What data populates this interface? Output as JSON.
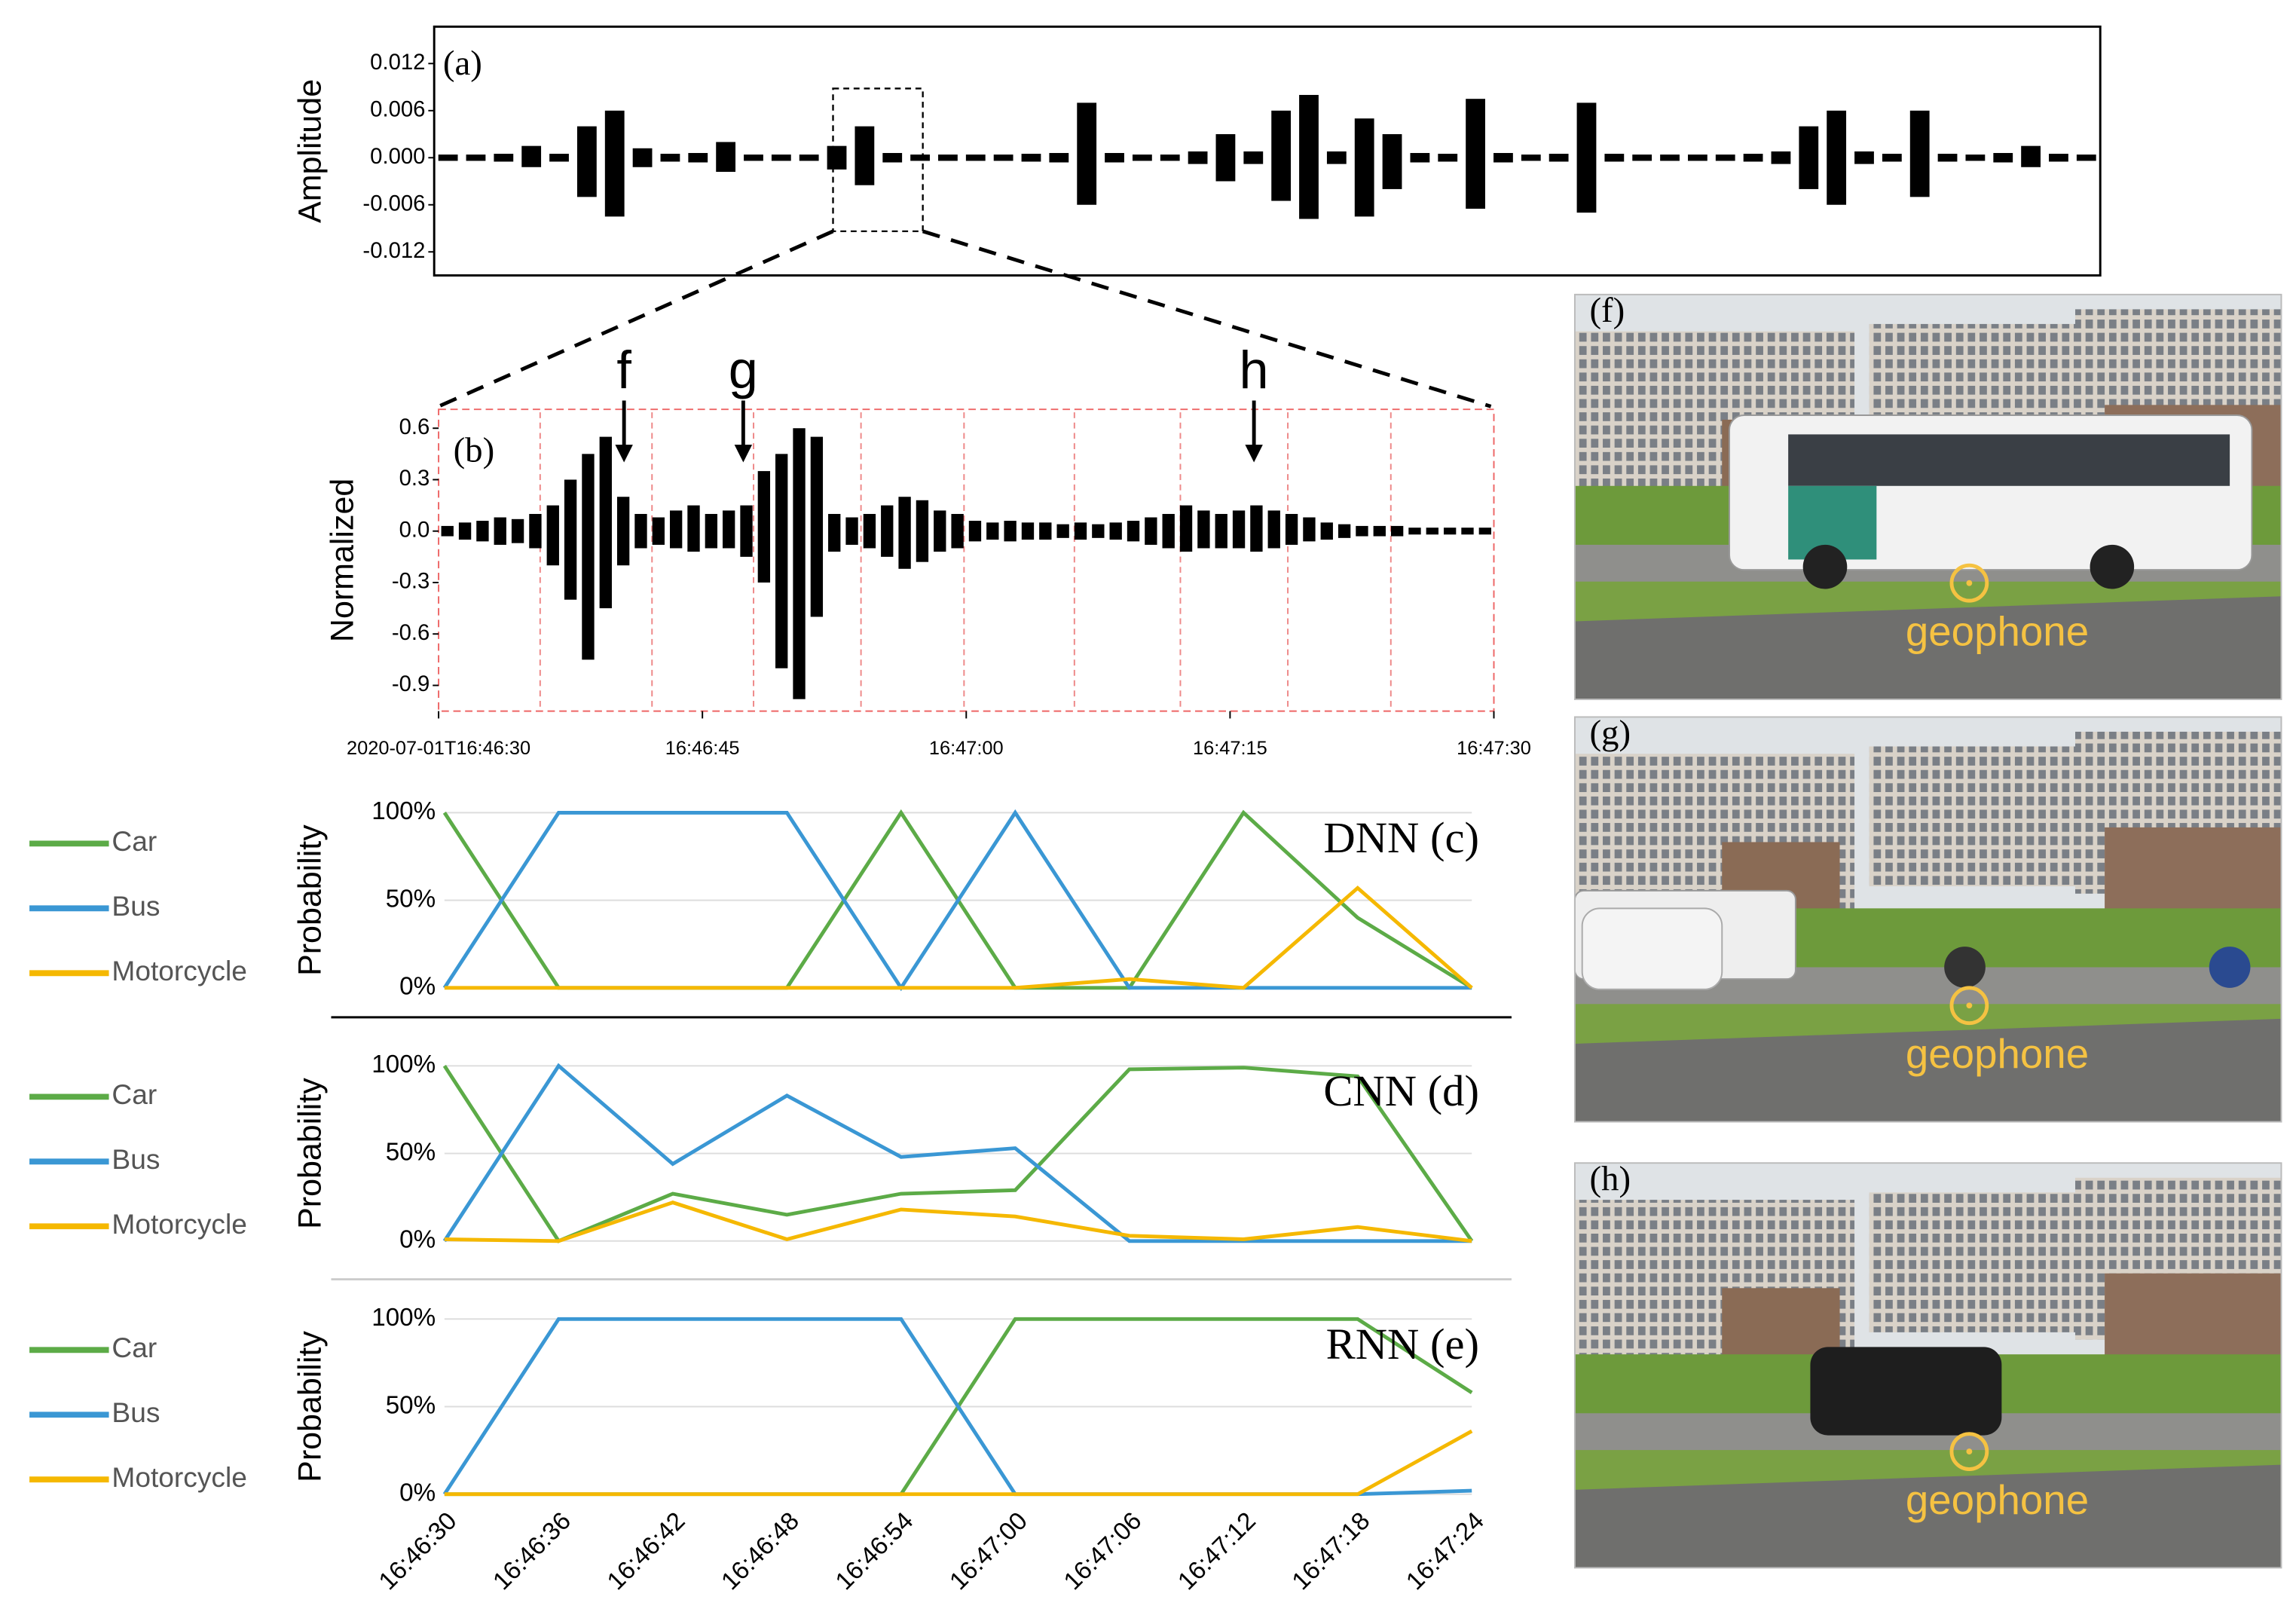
{
  "chart_data": [
    {
      "type": "waveform",
      "label": "(a)",
      "ylabel": "Amplitude",
      "ylim": [
        -0.015,
        0.0167
      ],
      "yticks": [
        0.012,
        0.006,
        {
          "value": 0,
          "label": "0.000"
        },
        -0.006,
        -0.012
      ],
      "series": [
        {
          "color": "#000000",
          "values": [
            0.0004,
            0.0004,
            0.0005,
            0.0015,
            0.0005,
            0.004,
            0.006,
            0.0012,
            0.0005,
            0.0006,
            0.002,
            0.0004,
            0.0004,
            0.0004,
            0.0015,
            0.004,
            0.0006,
            0.0004,
            0.0004,
            0.0004,
            0.0004,
            0.0005,
            0.0006,
            0.007,
            0.0006,
            0.0004,
            0.0004,
            0.0008,
            0.003,
            0.0008,
            0.006,
            0.008,
            0.0008,
            0.005,
            0.003,
            0.0006,
            0.0005,
            0.0075,
            0.0006,
            0.0004,
            0.0005,
            0.007,
            0.0005,
            0.0004,
            0.0004,
            0.0004,
            0.0004,
            0.0005,
            0.0008,
            0.004,
            0.006,
            0.0008,
            0.0005,
            0.006,
            0.0005,
            0.0004,
            0.0006,
            0.0015,
            0.0005,
            0.0004
          ]
        },
        {
          "color": "#000000",
          "values": [
            -0.0004,
            -0.0004,
            -0.0005,
            -0.0012,
            -0.0005,
            -0.005,
            -0.0075,
            -0.0012,
            -0.0005,
            -0.0006,
            -0.0018,
            -0.0004,
            -0.0004,
            -0.0004,
            -0.0015,
            -0.0035,
            -0.0006,
            -0.0004,
            -0.0004,
            -0.0004,
            -0.0004,
            -0.0005,
            -0.0006,
            -0.006,
            -0.0006,
            -0.0004,
            -0.0004,
            -0.0008,
            -0.003,
            -0.0008,
            -0.0055,
            -0.0078,
            -0.0008,
            -0.0075,
            -0.004,
            -0.0006,
            -0.0005,
            -0.0065,
            -0.0006,
            -0.0004,
            -0.0005,
            -0.007,
            -0.0005,
            -0.0004,
            -0.0004,
            -0.0004,
            -0.0004,
            -0.0005,
            -0.0008,
            -0.004,
            -0.006,
            -0.0008,
            -0.0005,
            -0.005,
            -0.0005,
            -0.0004,
            -0.0006,
            -0.0012,
            -0.0005,
            -0.0004
          ]
        }
      ]
    },
    {
      "type": "waveform",
      "label": "(b)",
      "ylabel": "Normalized",
      "xlim": [
        "2020-07-01T16:46:30",
        "16:47:30"
      ],
      "xticks": [
        "2020-07-01T16:46:30",
        "16:46:45",
        "16:47:00",
        "16:47:15",
        "16:47:30"
      ],
      "ylim": [
        -1.05,
        0.71
      ],
      "yticks": [
        0.6,
        0.3,
        {
          "value": 0,
          "label": "0.0"
        },
        -0.3,
        -0.6,
        -0.9
      ],
      "annotations": [
        "f",
        "g",
        "h"
      ],
      "series": [
        {
          "color": "#000000",
          "values": [
            0.03,
            0.05,
            0.06,
            0.08,
            0.07,
            0.1,
            0.15,
            0.3,
            0.45,
            0.55,
            0.2,
            0.1,
            0.08,
            0.12,
            0.15,
            0.1,
            0.12,
            0.15,
            0.35,
            0.45,
            0.6,
            0.55,
            0.1,
            0.08,
            0.1,
            0.15,
            0.2,
            0.18,
            0.12,
            0.1,
            0.06,
            0.05,
            0.06,
            0.05,
            0.05,
            0.04,
            0.05,
            0.04,
            0.05,
            0.06,
            0.08,
            0.1,
            0.15,
            0.12,
            0.1,
            0.12,
            0.15,
            0.12,
            0.1,
            0.08,
            0.05,
            0.04,
            0.03,
            0.03,
            0.03,
            0.02,
            0.02,
            0.02,
            0.02,
            0.02
          ]
        },
        {
          "color": "#000000",
          "values": [
            -0.03,
            -0.05,
            -0.06,
            -0.08,
            -0.07,
            -0.1,
            -0.2,
            -0.4,
            -0.75,
            -0.45,
            -0.2,
            -0.1,
            -0.08,
            -0.1,
            -0.12,
            -0.1,
            -0.1,
            -0.15,
            -0.3,
            -0.8,
            -0.98,
            -0.5,
            -0.12,
            -0.08,
            -0.1,
            -0.15,
            -0.22,
            -0.18,
            -0.12,
            -0.1,
            -0.06,
            -0.05,
            -0.06,
            -0.05,
            -0.05,
            -0.04,
            -0.05,
            -0.04,
            -0.05,
            -0.06,
            -0.08,
            -0.1,
            -0.12,
            -0.1,
            -0.1,
            -0.1,
            -0.12,
            -0.1,
            -0.08,
            -0.06,
            -0.05,
            -0.04,
            -0.03,
            -0.03,
            -0.03,
            -0.02,
            -0.02,
            -0.02,
            -0.02,
            -0.02
          ]
        }
      ]
    },
    {
      "type": "line",
      "label": "DNN (c)",
      "ylabel": "Probability",
      "legend": "left",
      "grid": true,
      "categories": [
        null,
        null,
        null,
        null,
        null,
        null,
        null,
        null,
        null,
        null
      ],
      "ylim": [
        0,
        100
      ],
      "yticks": [
        {
          "value": 0,
          "label": "0%"
        },
        {
          "value": 50,
          "label": "50%"
        },
        {
          "value": 100,
          "label": "100%"
        }
      ],
      "series": [
        {
          "name": "Car",
          "color": "#5cab47",
          "values": [
            100,
            0,
            0,
            0,
            100,
            0,
            0,
            100,
            40,
            0
          ]
        },
        {
          "name": "Bus",
          "color": "#3a97d4",
          "values": [
            0,
            100,
            100,
            100,
            0,
            100,
            0,
            0,
            0,
            0
          ]
        },
        {
          "name": "Motorcycle",
          "color": "#f5b800",
          "values": [
            0,
            0,
            0,
            0,
            0,
            0,
            5,
            0,
            57,
            0
          ]
        }
      ]
    },
    {
      "type": "line",
      "label": "CNN (d)",
      "ylabel": "Probability",
      "legend": "left",
      "grid": true,
      "categories": [
        null,
        null,
        null,
        null,
        null,
        null,
        null,
        null,
        null,
        null
      ],
      "ylim": [
        0,
        100
      ],
      "yticks": [
        {
          "value": 0,
          "label": "0%"
        },
        {
          "value": 50,
          "label": "50%"
        },
        {
          "value": 100,
          "label": "100%"
        }
      ],
      "series": [
        {
          "name": "Car",
          "color": "#5cab47",
          "values": [
            100,
            0,
            27,
            15,
            27,
            29,
            98,
            99,
            94,
            0
          ]
        },
        {
          "name": "Bus",
          "color": "#3a97d4",
          "values": [
            0,
            100,
            44,
            83,
            48,
            53,
            0,
            0,
            0,
            0
          ]
        },
        {
          "name": "Motorcycle",
          "color": "#f5b800",
          "values": [
            1,
            0,
            22,
            1,
            18,
            14,
            3,
            1,
            8,
            0
          ]
        }
      ]
    },
    {
      "type": "line",
      "label": "RNN (e)",
      "ylabel": "Probability",
      "legend": "left",
      "grid": true,
      "categories": [
        "16:46:30",
        "16:46:36",
        "16:46:42",
        "16:46:48",
        "16:46:54",
        "16:47:00",
        "16:47:06",
        "16:47:12",
        "16:47:18",
        "16:47:24"
      ],
      "ylim": [
        0,
        100
      ],
      "yticks": [
        {
          "value": 0,
          "label": "0%"
        },
        {
          "value": 50,
          "label": "50%"
        },
        {
          "value": 100,
          "label": "100%"
        }
      ],
      "series": [
        {
          "name": "Car",
          "color": "#5cab47",
          "values": [
            0,
            0,
            0,
            0,
            0,
            100,
            100,
            100,
            100,
            58
          ]
        },
        {
          "name": "Bus",
          "color": "#3a97d4",
          "values": [
            0,
            100,
            100,
            100,
            100,
            0,
            0,
            0,
            0,
            2
          ]
        },
        {
          "name": "Motorcycle",
          "color": "#f5b800",
          "values": [
            0,
            0,
            0,
            0,
            0,
            0,
            0,
            0,
            0,
            36
          ]
        }
      ]
    }
  ],
  "photos": [
    {
      "label": "(f)",
      "annotation": "geophone"
    },
    {
      "label": "(g)",
      "annotation": "geophone"
    },
    {
      "label": "(h)",
      "annotation": "geophone"
    }
  ]
}
